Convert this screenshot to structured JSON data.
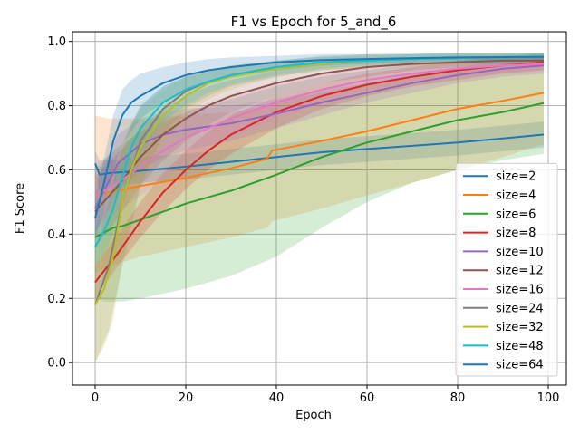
{
  "chart_data": {
    "type": "line",
    "title": "F1 vs Epoch for 5_and_6",
    "xlabel": "Epoch",
    "ylabel": "F1 Score",
    "xlim": [
      -5,
      104
    ],
    "ylim": [
      -0.07,
      1.03
    ],
    "xticks": [
      0,
      20,
      40,
      60,
      80,
      100
    ],
    "yticks": [
      0.0,
      0.2,
      0.4,
      0.6,
      0.8,
      1.0
    ],
    "xtick_labels": [
      "0",
      "20",
      "40",
      "60",
      "80",
      "100"
    ],
    "ytick_labels": [
      "0.0",
      "0.2",
      "0.4",
      "0.6",
      "0.8",
      "1.0"
    ],
    "grid": true,
    "legend_position": "lower-right",
    "series": [
      {
        "name": "size=2",
        "color": "#1f77b4",
        "x": [
          0,
          1,
          3,
          10,
          20,
          30,
          40,
          50,
          60,
          70,
          80,
          90,
          99
        ],
        "y": [
          0.62,
          0.585,
          0.59,
          0.597,
          0.61,
          0.625,
          0.64,
          0.655,
          0.665,
          0.675,
          0.685,
          0.698,
          0.71
        ],
        "band": [
          [
            0.58,
            0.66
          ],
          [
            0.54,
            0.63
          ],
          [
            0.55,
            0.63
          ],
          [
            0.56,
            0.64
          ],
          [
            0.57,
            0.65
          ],
          [
            0.585,
            0.665
          ],
          [
            0.6,
            0.68
          ],
          [
            0.615,
            0.695
          ],
          [
            0.625,
            0.705
          ],
          [
            0.635,
            0.715
          ],
          [
            0.645,
            0.725
          ],
          [
            0.658,
            0.738
          ],
          [
            0.67,
            0.75
          ]
        ]
      },
      {
        "name": "size=4",
        "color": "#ff7f0e",
        "x": [
          0,
          3,
          10,
          20,
          30,
          38,
          39,
          50,
          60,
          70,
          80,
          90,
          99
        ],
        "y": [
          0.52,
          0.53,
          0.55,
          0.575,
          0.605,
          0.635,
          0.66,
          0.69,
          0.72,
          0.755,
          0.79,
          0.815,
          0.84
        ],
        "band": [
          [
            0.28,
            0.77
          ],
          [
            0.3,
            0.76
          ],
          [
            0.33,
            0.76
          ],
          [
            0.36,
            0.77
          ],
          [
            0.39,
            0.78
          ],
          [
            0.42,
            0.8
          ],
          [
            0.44,
            0.81
          ],
          [
            0.48,
            0.84
          ],
          [
            0.52,
            0.87
          ],
          [
            0.56,
            0.89
          ],
          [
            0.6,
            0.91
          ],
          [
            0.64,
            0.93
          ],
          [
            0.68,
            0.95
          ]
        ]
      },
      {
        "name": "size=6",
        "color": "#2ca02c",
        "x": [
          0,
          2,
          4,
          6,
          10,
          20,
          30,
          40,
          50,
          60,
          70,
          80,
          90,
          99
        ],
        "y": [
          0.39,
          0.405,
          0.42,
          0.425,
          0.445,
          0.495,
          0.535,
          0.585,
          0.64,
          0.685,
          0.72,
          0.755,
          0.78,
          0.808
        ],
        "band": [
          [
            0.2,
            0.6
          ],
          [
            0.19,
            0.63
          ],
          [
            0.19,
            0.66
          ],
          [
            0.19,
            0.68
          ],
          [
            0.2,
            0.72
          ],
          [
            0.23,
            0.78
          ],
          [
            0.27,
            0.82
          ],
          [
            0.33,
            0.86
          ],
          [
            0.42,
            0.89
          ],
          [
            0.5,
            0.91
          ],
          [
            0.56,
            0.93
          ],
          [
            0.6,
            0.94
          ],
          [
            0.63,
            0.955
          ],
          [
            0.65,
            0.965
          ]
        ]
      },
      {
        "name": "size=8",
        "color": "#d62728",
        "x": [
          0,
          5,
          10,
          15,
          20,
          25,
          30,
          40,
          50,
          60,
          70,
          80,
          90,
          99
        ],
        "y": [
          0.25,
          0.34,
          0.44,
          0.53,
          0.6,
          0.66,
          0.71,
          0.78,
          0.83,
          0.865,
          0.89,
          0.91,
          0.925,
          0.935
        ],
        "band": [
          [
            0.2,
            0.3
          ],
          [
            0.3,
            0.4
          ],
          [
            0.39,
            0.5
          ],
          [
            0.47,
            0.59
          ],
          [
            0.54,
            0.66
          ],
          [
            0.6,
            0.72
          ],
          [
            0.65,
            0.77
          ],
          [
            0.73,
            0.83
          ],
          [
            0.79,
            0.87
          ],
          [
            0.83,
            0.9
          ],
          [
            0.86,
            0.92
          ],
          [
            0.88,
            0.94
          ],
          [
            0.9,
            0.95
          ],
          [
            0.91,
            0.96
          ]
        ]
      },
      {
        "name": "size=10",
        "color": "#9467bd",
        "x": [
          0,
          5,
          10,
          15,
          20,
          30,
          40,
          50,
          60,
          70,
          80,
          90,
          99
        ],
        "y": [
          0.48,
          0.62,
          0.68,
          0.71,
          0.725,
          0.745,
          0.775,
          0.81,
          0.84,
          0.87,
          0.895,
          0.915,
          0.925
        ],
        "band": [
          [
            0.4,
            0.56
          ],
          [
            0.53,
            0.71
          ],
          [
            0.6,
            0.76
          ],
          [
            0.64,
            0.78
          ],
          [
            0.66,
            0.79
          ],
          [
            0.69,
            0.8
          ],
          [
            0.73,
            0.82
          ],
          [
            0.77,
            0.85
          ],
          [
            0.81,
            0.87
          ],
          [
            0.84,
            0.9
          ],
          [
            0.87,
            0.92
          ],
          [
            0.89,
            0.94
          ],
          [
            0.9,
            0.95
          ]
        ]
      },
      {
        "name": "size=12",
        "color": "#8c564b",
        "x": [
          0,
          5,
          10,
          15,
          20,
          25,
          30,
          40,
          50,
          60,
          70,
          80,
          90,
          99
        ],
        "y": [
          0.47,
          0.55,
          0.64,
          0.71,
          0.76,
          0.8,
          0.83,
          0.87,
          0.9,
          0.92,
          0.93,
          0.935,
          0.94,
          0.94
        ],
        "band": [
          [
            0.36,
            0.58
          ],
          [
            0.45,
            0.65
          ],
          [
            0.55,
            0.73
          ],
          [
            0.63,
            0.79
          ],
          [
            0.69,
            0.83
          ],
          [
            0.74,
            0.86
          ],
          [
            0.78,
            0.88
          ],
          [
            0.83,
            0.91
          ],
          [
            0.87,
            0.93
          ],
          [
            0.89,
            0.94
          ],
          [
            0.91,
            0.95
          ],
          [
            0.92,
            0.955
          ],
          [
            0.925,
            0.955
          ],
          [
            0.925,
            0.955
          ]
        ]
      },
      {
        "name": "size=16",
        "color": "#e377c2",
        "x": [
          0,
          5,
          10,
          15,
          20,
          25,
          30,
          40,
          50,
          60,
          70,
          80,
          90,
          99
        ],
        "y": [
          0.52,
          0.56,
          0.61,
          0.66,
          0.7,
          0.73,
          0.76,
          0.81,
          0.85,
          0.88,
          0.9,
          0.915,
          0.925,
          0.93
        ],
        "band": [
          [
            0.42,
            0.62
          ],
          [
            0.47,
            0.66
          ],
          [
            0.52,
            0.7
          ],
          [
            0.57,
            0.74
          ],
          [
            0.62,
            0.78
          ],
          [
            0.66,
            0.81
          ],
          [
            0.7,
            0.83
          ],
          [
            0.76,
            0.87
          ],
          [
            0.81,
            0.9
          ],
          [
            0.85,
            0.92
          ],
          [
            0.87,
            0.93
          ],
          [
            0.89,
            0.94
          ],
          [
            0.9,
            0.95
          ],
          [
            0.91,
            0.95
          ]
        ]
      },
      {
        "name": "size=24",
        "color": "#7f7f7f",
        "x": [
          0,
          3,
          6,
          10,
          15,
          20,
          25,
          30,
          40,
          50,
          60,
          70,
          80,
          90,
          99
        ],
        "y": [
          0.18,
          0.3,
          0.5,
          0.69,
          0.79,
          0.845,
          0.875,
          0.895,
          0.92,
          0.935,
          0.94,
          0.945,
          0.948,
          0.95,
          0.952
        ],
        "band": [
          [
            0.0,
            0.36
          ],
          [
            0.1,
            0.5
          ],
          [
            0.3,
            0.68
          ],
          [
            0.55,
            0.8
          ],
          [
            0.71,
            0.86
          ],
          [
            0.79,
            0.89
          ],
          [
            0.83,
            0.91
          ],
          [
            0.86,
            0.925
          ],
          [
            0.89,
            0.94
          ],
          [
            0.91,
            0.955
          ],
          [
            0.92,
            0.96
          ],
          [
            0.925,
            0.96
          ],
          [
            0.93,
            0.965
          ],
          [
            0.93,
            0.965
          ],
          [
            0.935,
            0.965
          ]
        ]
      },
      {
        "name": "size=32",
        "color": "#bcbd22",
        "x": [
          0,
          2,
          4,
          6,
          8,
          10,
          15,
          20,
          25,
          30,
          40,
          50,
          60,
          70,
          80,
          90,
          99
        ],
        "y": [
          0.18,
          0.23,
          0.33,
          0.5,
          0.6,
          0.67,
          0.77,
          0.83,
          0.87,
          0.89,
          0.915,
          0.93,
          0.94,
          0.945,
          0.948,
          0.95,
          0.952
        ],
        "band": [
          [
            0.0,
            0.36
          ],
          [
            0.05,
            0.42
          ],
          [
            0.13,
            0.53
          ],
          [
            0.32,
            0.68
          ],
          [
            0.45,
            0.75
          ],
          [
            0.55,
            0.79
          ],
          [
            0.69,
            0.85
          ],
          [
            0.77,
            0.89
          ],
          [
            0.82,
            0.91
          ],
          [
            0.85,
            0.925
          ],
          [
            0.89,
            0.94
          ],
          [
            0.91,
            0.95
          ],
          [
            0.92,
            0.96
          ],
          [
            0.925,
            0.96
          ],
          [
            0.93,
            0.965
          ],
          [
            0.935,
            0.965
          ],
          [
            0.935,
            0.965
          ]
        ]
      },
      {
        "name": "size=48",
        "color": "#17becf",
        "x": [
          0,
          2,
          4,
          6,
          8,
          10,
          15,
          20,
          25,
          30,
          40,
          50,
          60,
          70,
          80,
          90,
          99
        ],
        "y": [
          0.36,
          0.41,
          0.48,
          0.58,
          0.67,
          0.73,
          0.81,
          0.85,
          0.875,
          0.895,
          0.92,
          0.935,
          0.94,
          0.945,
          0.948,
          0.95,
          0.952
        ],
        "band": [
          [
            0.3,
            0.42
          ],
          [
            0.34,
            0.48
          ],
          [
            0.4,
            0.56
          ],
          [
            0.49,
            0.66
          ],
          [
            0.58,
            0.74
          ],
          [
            0.65,
            0.8
          ],
          [
            0.75,
            0.86
          ],
          [
            0.8,
            0.89
          ],
          [
            0.84,
            0.905
          ],
          [
            0.865,
            0.92
          ],
          [
            0.895,
            0.94
          ],
          [
            0.915,
            0.952
          ],
          [
            0.925,
            0.955
          ],
          [
            0.93,
            0.96
          ],
          [
            0.93,
            0.962
          ],
          [
            0.932,
            0.962
          ],
          [
            0.935,
            0.965
          ]
        ]
      },
      {
        "name": "size=64",
        "color": "#1f77b4",
        "x": [
          0,
          2,
          4,
          6,
          8,
          10,
          15,
          20,
          25,
          30,
          40,
          50,
          60,
          70,
          80,
          90,
          99
        ],
        "y": [
          0.45,
          0.56,
          0.69,
          0.77,
          0.81,
          0.83,
          0.87,
          0.895,
          0.91,
          0.92,
          0.935,
          0.942,
          0.945,
          0.948,
          0.95,
          0.951,
          0.952
        ],
        "band": [
          [
            0.38,
            0.52
          ],
          [
            0.48,
            0.64
          ],
          [
            0.6,
            0.77
          ],
          [
            0.68,
            0.85
          ],
          [
            0.72,
            0.88
          ],
          [
            0.76,
            0.9
          ],
          [
            0.81,
            0.92
          ],
          [
            0.85,
            0.935
          ],
          [
            0.875,
            0.945
          ],
          [
            0.89,
            0.95
          ],
          [
            0.91,
            0.955
          ],
          [
            0.925,
            0.96
          ],
          [
            0.93,
            0.96
          ],
          [
            0.935,
            0.962
          ],
          [
            0.937,
            0.963
          ],
          [
            0.938,
            0.963
          ],
          [
            0.94,
            0.964
          ]
        ]
      }
    ]
  }
}
